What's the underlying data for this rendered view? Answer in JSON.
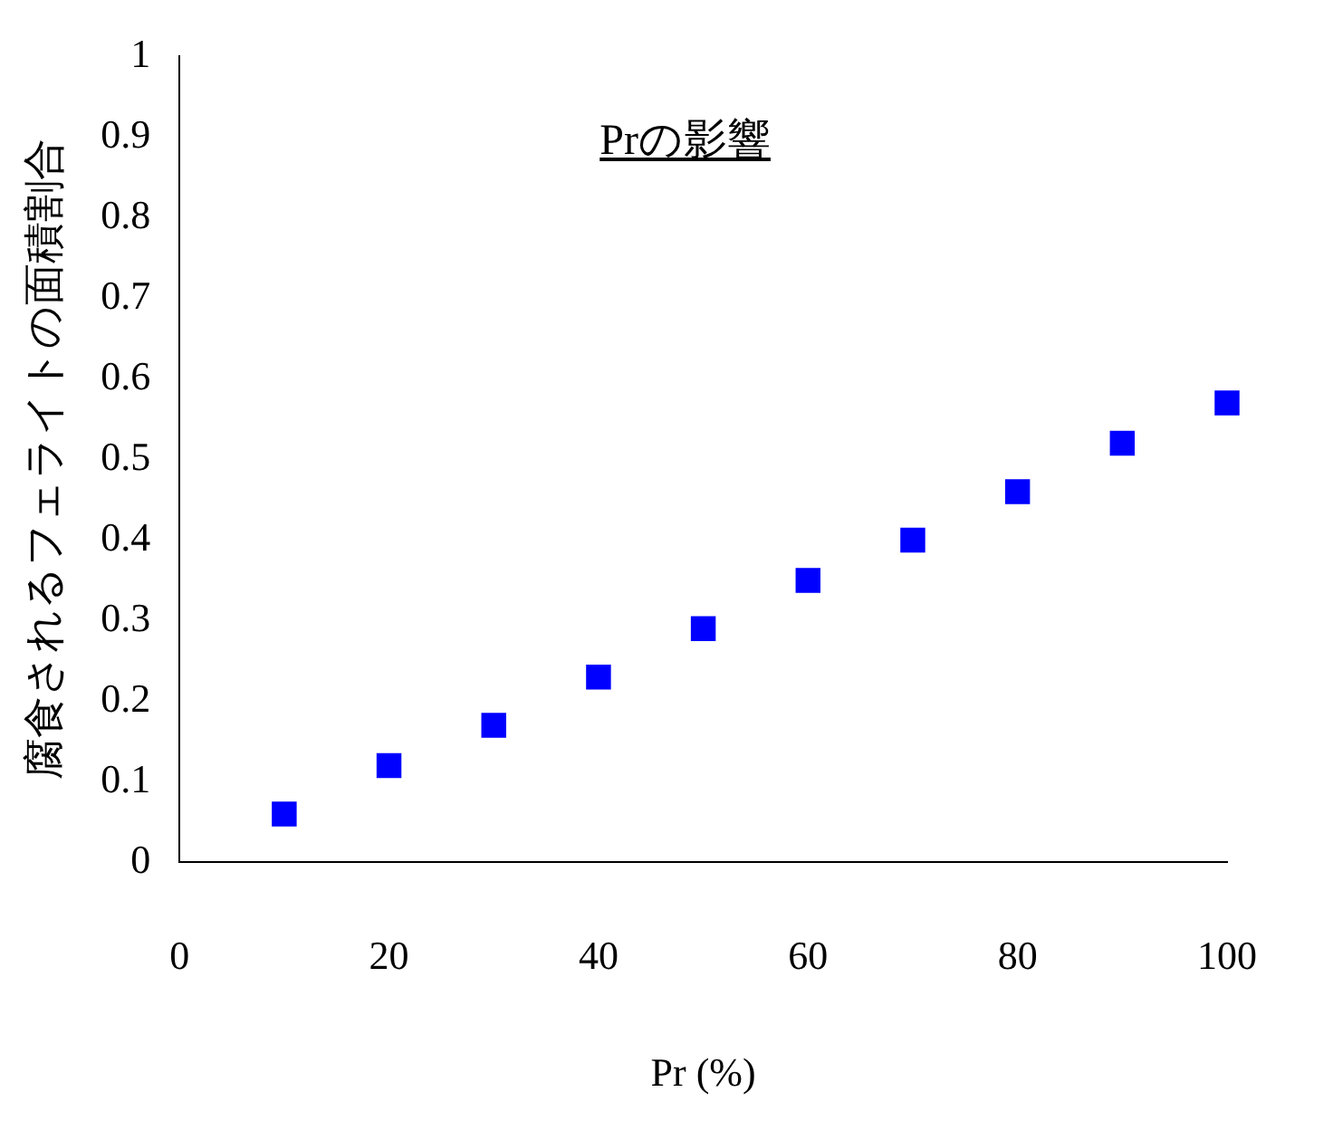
{
  "chart_data": {
    "type": "scatter",
    "title": "Prの影響",
    "xlabel": "Pr (%)",
    "ylabel": "腐食されるフェライトの面積割合",
    "x": [
      10,
      20,
      30,
      40,
      50,
      60,
      70,
      80,
      90,
      100
    ],
    "series": [
      {
        "color": "#0000ff",
        "values": [
          0.06,
          0.12,
          0.17,
          0.23,
          0.29,
          0.35,
          0.4,
          0.46,
          0.52,
          0.57
        ]
      }
    ],
    "xlim": [
      0,
      100
    ],
    "xticks": [
      0,
      20,
      40,
      60,
      80,
      100
    ],
    "ylim": [
      0,
      1
    ],
    "yticks": [
      0,
      0.1,
      0.2,
      0.3,
      0.4,
      0.5,
      0.6,
      0.7,
      0.8,
      0.9,
      1
    ],
    "grid": false,
    "legend": false,
    "marker": "square"
  }
}
